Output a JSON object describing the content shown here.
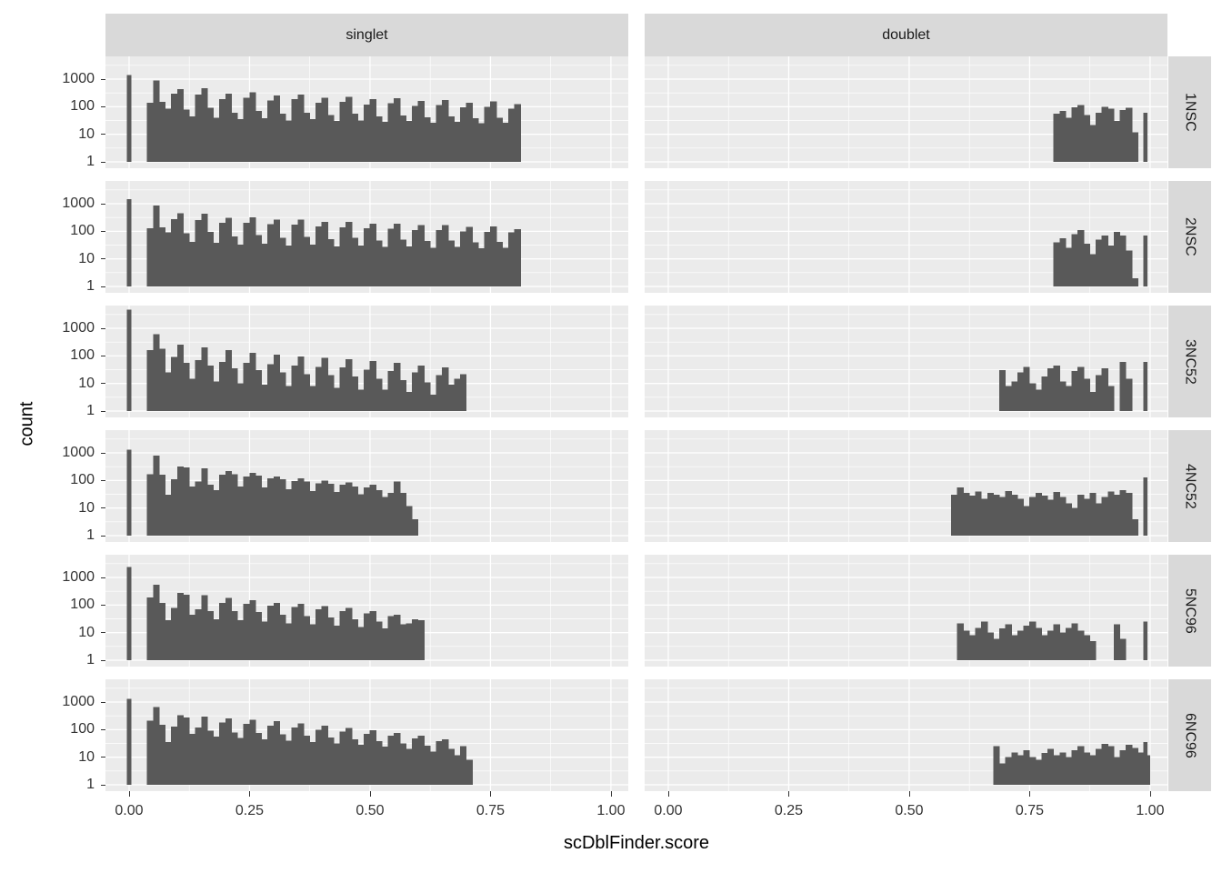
{
  "colors": {
    "bar": "#595959",
    "panel_bg": "#EBEBEB",
    "strip_bg": "#D9D9D9",
    "grid": "#FFFFFF",
    "tick_text": "#333333",
    "title_text": "#000000"
  },
  "axes": {
    "x": {
      "title": "scDblFinder.score",
      "tick_labels": [
        "0.00",
        "0.25",
        "0.50",
        "0.75",
        "1.00"
      ],
      "tick_values": [
        0,
        0.25,
        0.5,
        0.75,
        1.0
      ],
      "minor_values": [
        0.125,
        0.375,
        0.625,
        0.875
      ],
      "domain": [
        -0.049,
        1.036
      ]
    },
    "y": {
      "title": "count",
      "scale": "log10",
      "tick_labels": [
        "1000",
        "100",
        "10",
        "1"
      ],
      "tick_values": [
        1000,
        100,
        10,
        1
      ],
      "minor_log10": [
        0.5,
        1.5,
        2.5,
        3.5
      ],
      "domain_log10": [
        -0.23,
        3.824
      ]
    }
  },
  "chart_data": {
    "type": "bar",
    "subtype": "faceted-histogram-log-y",
    "title": "",
    "xlabel": "scDblFinder.score",
    "ylabel": "count",
    "legend": "none",
    "grid": "on",
    "facet_cols": [
      "singlet",
      "doublet"
    ],
    "facet_rows": [
      "1NSC",
      "2NSC",
      "3NC52",
      "4NC52",
      "5NC96",
      "6NC96"
    ],
    "bin_width": 0.0125,
    "x_ticks": [
      0,
      0.25,
      0.5,
      0.75,
      1.0
    ],
    "y_ticks": [
      1,
      10,
      100,
      1000
    ],
    "panels": [
      {
        "facet_row": "1NSC",
        "facet_col": "singlet",
        "spike": {
          "x": 0.0,
          "count": 1400
        },
        "runs": [
          {
            "x0": 0.0375,
            "counts": [
              140,
              880,
              150,
              85,
              300,
              430,
              80,
              45,
              280,
              470,
              90,
              40,
              190,
              300,
              60,
              35,
              210,
              330,
              70,
              38,
              170,
              260,
              55,
              32,
              185,
              280,
              60,
              35,
              140,
              210,
              50,
              30,
              150,
              230,
              55,
              32,
              120,
              185,
              45,
              28,
              135,
              200,
              48,
              30,
              105,
              160,
              42,
              26,
              115,
              175,
              45,
              28,
              95,
              140,
              38,
              25,
              100,
              155,
              40,
              26,
              85,
              125
            ]
          }
        ]
      },
      {
        "facet_row": "1NSC",
        "facet_col": "doublet",
        "spike": {
          "x": 0.99,
          "count": 60
        },
        "runs": [
          {
            "x0": 0.8,
            "counts": [
              55,
              70,
              40,
              95,
              115,
              50,
              22,
              60,
              100,
              85,
              30,
              75,
              90,
              12
            ]
          }
        ]
      },
      {
        "facet_row": "2NSC",
        "facet_col": "singlet",
        "spike": {
          "x": 0.0,
          "count": 1450
        },
        "runs": [
          {
            "x0": 0.0375,
            "counts": [
              130,
              850,
              140,
              90,
              280,
              450,
              85,
              42,
              260,
              440,
              95,
              38,
              200,
              310,
              65,
              33,
              200,
              320,
              72,
              36,
              180,
              270,
              58,
              30,
              175,
              270,
              62,
              33,
              150,
              220,
              52,
              28,
              140,
              220,
              57,
              30,
              130,
              190,
              47,
              27,
              125,
              190,
              50,
              28,
              110,
              165,
              44,
              25,
              110,
              170,
              47,
              27,
              100,
              145,
              40,
              24,
              95,
              150,
              42,
              25,
              90,
              120
            ]
          }
        ]
      },
      {
        "facet_row": "2NSC",
        "facet_col": "doublet",
        "spike": {
          "x": 0.99,
          "count": 70
        },
        "runs": [
          {
            "x0": 0.8,
            "counts": [
              40,
              55,
              25,
              80,
              110,
              35,
              15,
              50,
              70,
              30,
              95,
              70,
              20,
              2
            ]
          }
        ]
      },
      {
        "facet_row": "3NC52",
        "facet_col": "singlet",
        "spike": {
          "x": 0.0,
          "count": 4800
        },
        "runs": [
          {
            "x0": 0.0375,
            "counts": [
              160,
              600,
              180,
              25,
              90,
              260,
              55,
              15,
              70,
              200,
              45,
              12,
              60,
              160,
              35,
              10,
              55,
              130,
              30,
              9,
              50,
              110,
              25,
              8,
              45,
              95,
              22,
              8,
              40,
              85,
              20,
              7,
              38,
              75,
              18,
              6,
              32,
              65,
              15,
              6,
              28,
              55,
              13,
              5,
              25,
              45,
              11,
              4,
              20,
              38,
              9,
              15,
              22
            ]
          }
        ]
      },
      {
        "facet_row": "3NC52",
        "facet_col": "doublet",
        "spike": {
          "x": 0.99,
          "count": 60
        },
        "runs": [
          {
            "x0": 0.6875,
            "counts": [
              30,
              8,
              12,
              25,
              40,
              10,
              6,
              18,
              35,
              45,
              12,
              8,
              28,
              40,
              15,
              5,
              20,
              35,
              8
            ]
          },
          {
            "x0": 0.9375,
            "counts": [
              60,
              15
            ]
          }
        ]
      },
      {
        "facet_row": "4NC52",
        "facet_col": "singlet",
        "spike": {
          "x": 0.0,
          "count": 1300
        },
        "runs": [
          {
            "x0": 0.0375,
            "counts": [
              170,
              800,
              160,
              30,
              110,
              320,
              300,
              60,
              90,
              280,
              70,
              45,
              160,
              220,
              170,
              60,
              140,
              190,
              150,
              55,
              120,
              140,
              110,
              48,
              95,
              120,
              90,
              42,
              80,
              100,
              75,
              38,
              70,
              85,
              60,
              32,
              55,
              70,
              45,
              25,
              35,
              90,
              35,
              12,
              4
            ]
          }
        ]
      },
      {
        "facet_row": "4NC52",
        "facet_col": "doublet",
        "spike": {
          "x": 0.99,
          "count": 130
        },
        "runs": [
          {
            "x0": 0.5875,
            "counts": [
              30,
              55,
              35,
              28,
              40,
              22,
              35,
              30,
              25,
              42,
              30,
              22,
              12,
              25,
              35,
              28,
              20,
              38,
              25,
              15,
              10,
              30,
              22,
              35,
              15,
              25,
              40,
              30,
              45,
              35,
              4
            ]
          }
        ]
      },
      {
        "facet_row": "5NC96",
        "facet_col": "singlet",
        "spike": {
          "x": 0.0,
          "count": 2400
        },
        "runs": [
          {
            "x0": 0.0375,
            "counts": [
              190,
              550,
              120,
              28,
              80,
              280,
              240,
              45,
              70,
              230,
              60,
              30,
              120,
              180,
              60,
              28,
              110,
              150,
              55,
              25,
              95,
              120,
              45,
              22,
              85,
              110,
              40,
              20,
              70,
              90,
              35,
              18,
              60,
              80,
              30,
              16,
              50,
              60,
              25,
              14,
              40,
              45,
              20,
              22,
              30,
              28
            ]
          }
        ]
      },
      {
        "facet_row": "5NC96",
        "facet_col": "doublet",
        "spike": {
          "x": 0.99,
          "count": 25
        },
        "runs": [
          {
            "x0": 0.6,
            "counts": [
              22,
              12,
              8,
              15,
              25,
              10,
              6,
              14,
              20,
              8,
              12,
              18,
              25,
              15,
              8,
              12,
              20,
              10,
              15,
              22,
              12,
              8,
              5
            ]
          },
          {
            "x0": 0.925,
            "counts": [
              20,
              6
            ]
          }
        ]
      },
      {
        "facet_row": "6NC96",
        "facet_col": "singlet",
        "spike": {
          "x": 0.0,
          "count": 1300
        },
        "runs": [
          {
            "x0": 0.0375,
            "counts": [
              210,
              650,
              150,
              35,
              130,
              330,
              280,
              70,
              120,
              300,
              90,
              55,
              180,
              260,
              80,
              50,
              160,
              230,
              75,
              45,
              140,
              200,
              68,
              40,
              120,
              170,
              60,
              36,
              100,
              140,
              52,
              32,
              85,
              115,
              45,
              28,
              70,
              95,
              38,
              24,
              60,
              75,
              32,
              20,
              48,
              60,
              26,
              16,
              38,
              45,
              20,
              12,
              25,
              8
            ]
          }
        ]
      },
      {
        "facet_row": "6NC96",
        "facet_col": "doublet",
        "spike": {
          "x": 0.99,
          "count": 35
        },
        "runs": [
          {
            "x0": 0.675,
            "counts": [
              25,
              6,
              10,
              15,
              12,
              18,
              10,
              8,
              14,
              20,
              12,
              15,
              10,
              18,
              25,
              15,
              12,
              20,
              30,
              25,
              10,
              18,
              28,
              22,
              15,
              12
            ]
          }
        ]
      }
    ]
  }
}
